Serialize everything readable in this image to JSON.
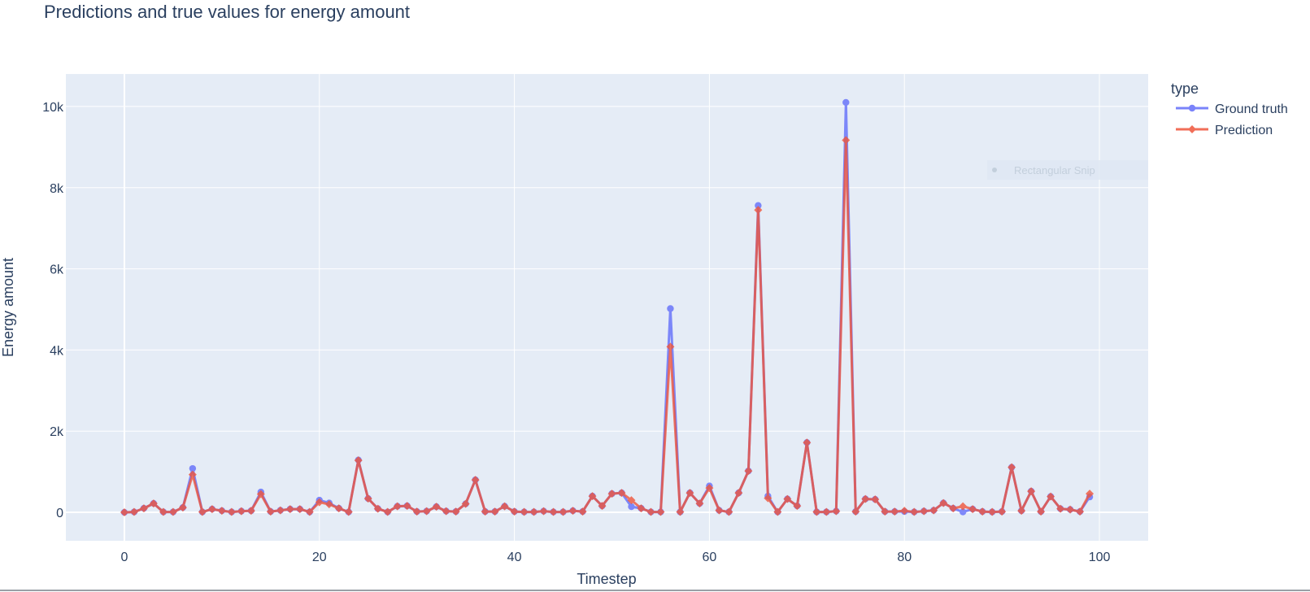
{
  "chart_data": {
    "type": "line",
    "title": "Predictions and true values for energy amount",
    "xlabel": "Timestep",
    "ylabel": "Energy amount",
    "xlim": [
      -6,
      105
    ],
    "ylim": [
      -700,
      10800
    ],
    "x_ticks": [
      0,
      20,
      40,
      60,
      80,
      100
    ],
    "y_ticks": [
      0,
      2000,
      4000,
      6000,
      8000,
      10000
    ],
    "y_tick_labels": [
      "0",
      "2k",
      "4k",
      "6k",
      "8k",
      "10k"
    ],
    "grid": true,
    "legend": {
      "title": "type",
      "placement": "right"
    },
    "series": [
      {
        "name": "Ground truth",
        "color": "#636efa",
        "marker": "circle",
        "values": [
          0,
          10,
          100,
          220,
          10,
          10,
          120,
          1080,
          10,
          80,
          40,
          10,
          30,
          40,
          500,
          20,
          50,
          80,
          80,
          10,
          300,
          230,
          100,
          10,
          1290,
          340,
          90,
          10,
          150,
          160,
          20,
          30,
          140,
          30,
          20,
          210,
          800,
          20,
          20,
          150,
          20,
          10,
          10,
          30,
          10,
          10,
          40,
          20,
          400,
          160,
          460,
          480,
          140,
          100,
          10,
          10,
          5020,
          10,
          480,
          220,
          650,
          50,
          10,
          480,
          1020,
          7560,
          400,
          10,
          330,
          160,
          1720,
          10,
          10,
          30,
          10100,
          20,
          330,
          320,
          20,
          20,
          20,
          10,
          30,
          50,
          230,
          100,
          10,
          80,
          20,
          10,
          20,
          1110,
          40,
          520,
          20,
          390,
          90,
          70,
          20,
          380
        ]
      },
      {
        "name": "Prediction",
        "color": "#ef553b",
        "marker": "diamond",
        "values": [
          0,
          10,
          100,
          220,
          10,
          10,
          120,
          930,
          10,
          80,
          40,
          10,
          30,
          40,
          450,
          20,
          50,
          80,
          80,
          10,
          250,
          200,
          100,
          10,
          1280,
          340,
          90,
          10,
          150,
          160,
          20,
          30,
          140,
          30,
          20,
          210,
          800,
          20,
          20,
          150,
          20,
          10,
          10,
          30,
          10,
          10,
          40,
          20,
          400,
          160,
          460,
          480,
          300,
          100,
          10,
          10,
          4080,
          10,
          480,
          220,
          600,
          50,
          10,
          480,
          1020,
          7450,
          350,
          10,
          330,
          160,
          1720,
          10,
          10,
          30,
          9170,
          20,
          330,
          320,
          20,
          20,
          40,
          10,
          30,
          50,
          230,
          100,
          150,
          80,
          20,
          10,
          20,
          1110,
          40,
          520,
          20,
          390,
          90,
          70,
          20,
          460
        ]
      }
    ]
  },
  "overlay": {
    "snip_label": "Rectangular Snip"
  }
}
